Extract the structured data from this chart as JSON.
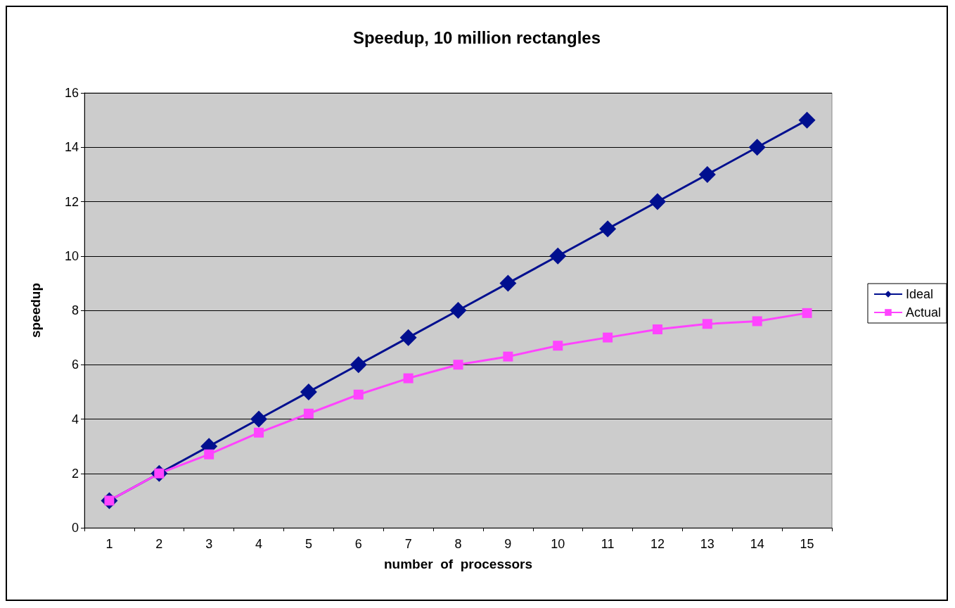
{
  "chart_data": {
    "type": "line",
    "title": "Speedup, 10 million rectangles",
    "xlabel": "number  of  processors",
    "ylabel": "speedup",
    "categories": [
      "1",
      "2",
      "3",
      "4",
      "5",
      "6",
      "7",
      "8",
      "9",
      "10",
      "11",
      "12",
      "13",
      "14",
      "15"
    ],
    "series": [
      {
        "name": "Ideal",
        "color": "#000f8f",
        "marker": "diamond",
        "values": [
          1,
          2,
          3,
          4,
          5,
          6,
          7,
          8,
          9,
          10,
          11,
          12,
          13,
          14,
          15
        ]
      },
      {
        "name": "Actual",
        "color": "#ff44ff",
        "marker": "square",
        "values": [
          1.0,
          2.0,
          2.7,
          3.5,
          4.2,
          4.9,
          5.5,
          6.0,
          6.3,
          6.7,
          7.0,
          7.3,
          7.5,
          7.6,
          7.9
        ]
      }
    ],
    "ylim": [
      0,
      16
    ],
    "yticks": [
      0,
      2,
      4,
      6,
      8,
      10,
      12,
      14,
      16
    ],
    "grid": "y",
    "legend": "right",
    "line_style": "solid"
  }
}
